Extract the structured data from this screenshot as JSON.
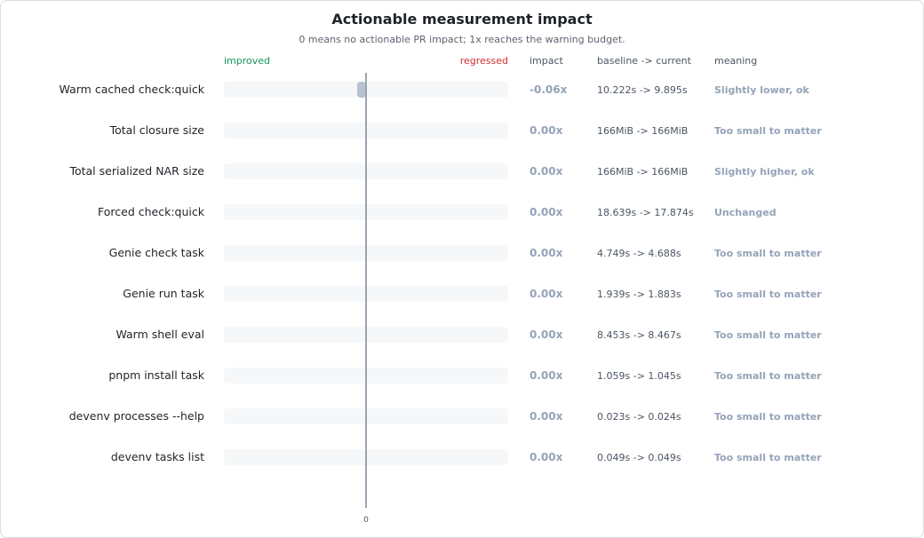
{
  "chart_data": {
    "type": "bar",
    "title": "Actionable measurement impact",
    "subtitle": "0 means no actionable PR impact; 1x reaches the warning budget.",
    "direction_labels": {
      "left": "improved",
      "right": "regressed"
    },
    "columns": {
      "impact": "impact",
      "baseline": "baseline -> current",
      "meaning": "meaning"
    },
    "x_tick_labels": [
      "0"
    ],
    "xlim": [
      -1,
      1
    ],
    "colors": {
      "improved": "#16955f",
      "regressed": "#d32f2f",
      "neutral_bar": "#b8c1cf",
      "track": "#f6f7f9"
    },
    "rows": [
      {
        "label": "Warm cached check:quick",
        "value": -0.06,
        "impact": "-0.06x",
        "baseline": "10.222s -> 9.895s",
        "meaning": "Slightly lower, ok"
      },
      {
        "label": "Total closure size",
        "value": 0.0,
        "impact": "0.00x",
        "baseline": "166MiB -> 166MiB",
        "meaning": "Too small to matter"
      },
      {
        "label": "Total serialized NAR size",
        "value": 0.0,
        "impact": "0.00x",
        "baseline": "166MiB -> 166MiB",
        "meaning": "Slightly higher, ok"
      },
      {
        "label": "Forced check:quick",
        "value": 0.0,
        "impact": "0.00x",
        "baseline": "18.639s -> 17.874s",
        "meaning": "Unchanged"
      },
      {
        "label": "Genie check task",
        "value": 0.0,
        "impact": "0.00x",
        "baseline": "4.749s -> 4.688s",
        "meaning": "Too small to matter"
      },
      {
        "label": "Genie run task",
        "value": 0.0,
        "impact": "0.00x",
        "baseline": "1.939s -> 1.883s",
        "meaning": "Too small to matter"
      },
      {
        "label": "Warm shell eval",
        "value": 0.0,
        "impact": "0.00x",
        "baseline": "8.453s -> 8.467s",
        "meaning": "Too small to matter"
      },
      {
        "label": "pnpm install task",
        "value": 0.0,
        "impact": "0.00x",
        "baseline": "1.059s -> 1.045s",
        "meaning": "Too small to matter"
      },
      {
        "label": "devenv processes --help",
        "value": 0.0,
        "impact": "0.00x",
        "baseline": "0.023s -> 0.024s",
        "meaning": "Too small to matter"
      },
      {
        "label": "devenv tasks list",
        "value": 0.0,
        "impact": "0.00x",
        "baseline": "0.049s -> 0.049s",
        "meaning": "Too small to matter"
      }
    ]
  }
}
